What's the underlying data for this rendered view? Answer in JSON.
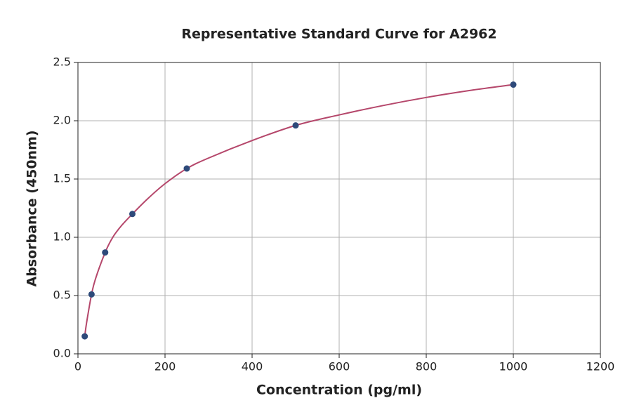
{
  "chart_data": {
    "type": "scatter",
    "title": "Representative Standard Curve for A2962",
    "x_label": "Concentration (pg/ml)",
    "y_label": "Absorbance (450nm)",
    "series": [
      {
        "type": "scatter",
        "color": "#2e4a7a",
        "x": [
          15.6,
          31.25,
          62.5,
          125,
          250,
          500,
          1000
        ],
        "values": [
          0.15,
          0.51,
          0.87,
          1.2,
          1.59,
          1.96,
          2.31
        ]
      },
      {
        "type": "line",
        "color": "#b5476b",
        "x": [
          15.6,
          20,
          31.25,
          40,
          62.5,
          80,
          100,
          125,
          160,
          200,
          250,
          300,
          400,
          500,
          600,
          700,
          800,
          900,
          1000
        ],
        "values": [
          0.15,
          0.27,
          0.51,
          0.64,
          0.87,
          1.0,
          1.1,
          1.2,
          1.33,
          1.46,
          1.59,
          1.68,
          1.83,
          1.96,
          2.05,
          2.13,
          2.2,
          2.26,
          2.31
        ]
      }
    ],
    "xlim": [
      0,
      1200
    ],
    "xticks": [
      0,
      200,
      400,
      600,
      800,
      1000,
      1200
    ],
    "ylim": [
      0,
      2.5
    ],
    "yticks": [
      {
        "value": 0,
        "label": "0.0"
      },
      {
        "value": 0.5,
        "label": "0.5"
      },
      {
        "value": 1,
        "label": "1.0"
      },
      {
        "value": 1.5,
        "label": "1.5"
      },
      {
        "value": 2,
        "label": "2.0"
      },
      {
        "value": 2.5,
        "label": "2.5"
      }
    ],
    "grid": true
  }
}
